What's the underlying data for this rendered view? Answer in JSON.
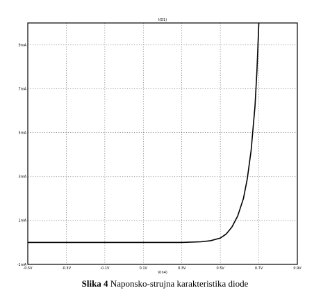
{
  "chart_data": {
    "type": "line",
    "title": "I(D1)",
    "xlabel": "V(n4)",
    "xlim": [
      -0.5,
      0.9
    ],
    "ylim": [
      -1,
      10
    ],
    "xticks": [
      -0.5,
      -0.3,
      -0.1,
      0.1,
      0.3,
      0.5,
      0.7,
      0.9
    ],
    "xtick_labels": [
      "-0.5V",
      "-0.3V",
      "-0.1V",
      "0.1V",
      "0.3V",
      "0.5V",
      "0.7V",
      "0.9V"
    ],
    "yticks": [
      -1,
      1,
      3,
      5,
      7,
      9
    ],
    "ytick_labels": [
      "-1mA",
      "1mA",
      "3mA",
      "5mA",
      "7mA",
      "9mA"
    ],
    "grid": true,
    "series": [
      {
        "x": [
          -0.5,
          0.0,
          0.3,
          0.4,
          0.45,
          0.5,
          0.53,
          0.56,
          0.59,
          0.62,
          0.64,
          0.66,
          0.68,
          0.69,
          0.7
        ],
        "y": [
          0.0,
          0.0,
          0.0,
          0.03,
          0.08,
          0.2,
          0.38,
          0.7,
          1.2,
          2.0,
          2.9,
          4.2,
          6.2,
          7.8,
          10.0
        ]
      }
    ]
  },
  "caption": {
    "label": "Slika  4",
    "text": " Naponsko-strujna karakteristika diode"
  }
}
